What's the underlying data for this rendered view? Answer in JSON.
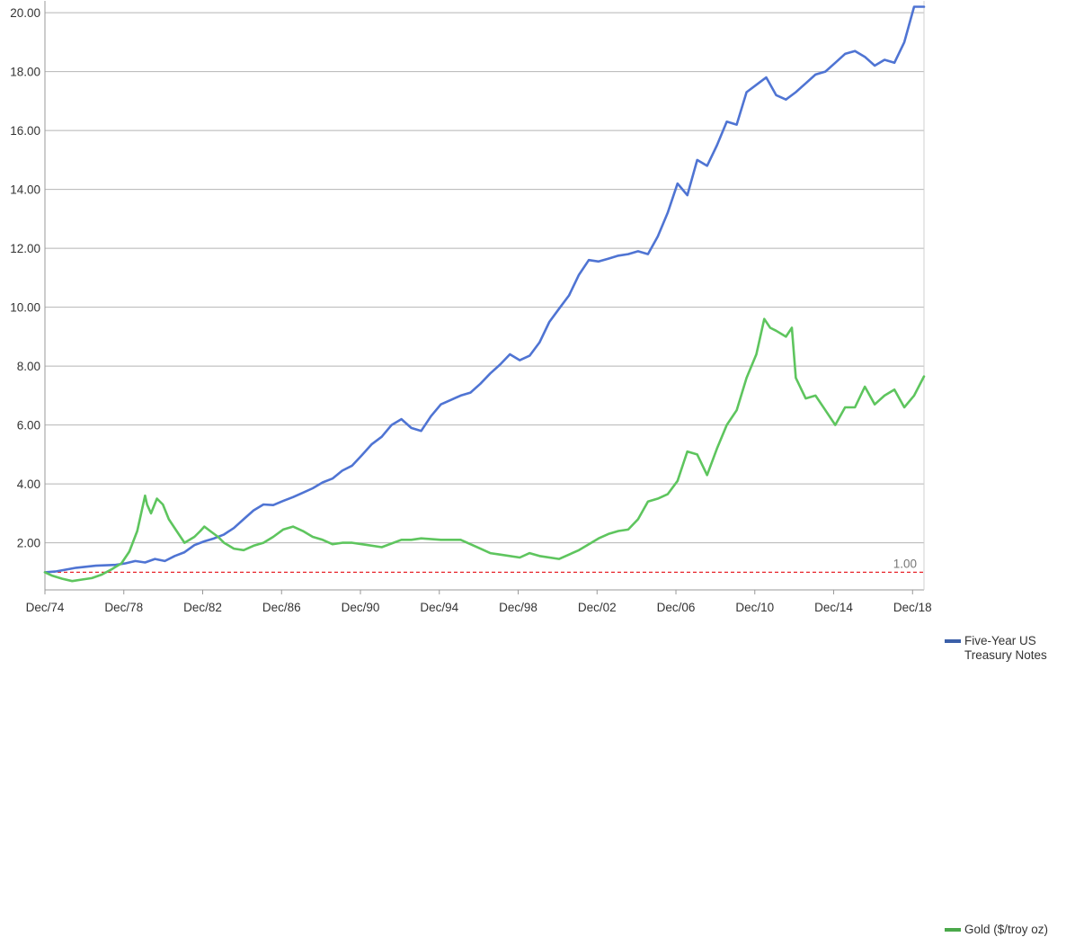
{
  "chart_data": {
    "type": "line",
    "title": "",
    "xlabel": "",
    "ylabel": "",
    "x_tick_labels": [
      "Dec/74",
      "Dec/78",
      "Dec/82",
      "Dec/86",
      "Dec/90",
      "Dec/94",
      "Dec/98",
      "Dec/02",
      "Dec/06",
      "Dec/10",
      "Dec/14",
      "Dec/18"
    ],
    "x_range_years": [
      1974.92,
      2019.5
    ],
    "y_ticks": [
      "2.00",
      "4.00",
      "6.00",
      "8.00",
      "10.00",
      "12.00",
      "14.00",
      "16.00",
      "18.00",
      "20.00"
    ],
    "ylim": [
      0.4,
      20.4
    ],
    "grid": "horizontal",
    "legend_position": "right",
    "reference_line": {
      "value": 1.0,
      "label": "1.00",
      "color": "#e8242b",
      "style": "dashed"
    },
    "series": [
      {
        "name": "Five-Year US Treasury Notes",
        "color": "#4f74d3",
        "legend_color": "#3b5fa8",
        "x": [
          1974.92,
          1975.5,
          1976.5,
          1977.5,
          1978.5,
          1979.0,
          1979.5,
          1980.0,
          1980.5,
          1981.0,
          1981.5,
          1982.0,
          1982.5,
          1983.0,
          1983.5,
          1984.0,
          1984.5,
          1985.0,
          1985.5,
          1986.0,
          1986.5,
          1987.0,
          1987.5,
          1988.0,
          1988.5,
          1989.0,
          1989.5,
          1990.0,
          1990.5,
          1991.0,
          1991.5,
          1992.0,
          1992.5,
          1993.0,
          1993.5,
          1994.0,
          1994.5,
          1995.0,
          1995.5,
          1996.0,
          1996.5,
          1997.0,
          1997.5,
          1998.0,
          1998.5,
          1999.0,
          1999.5,
          2000.0,
          2000.5,
          2001.0,
          2001.5,
          2002.0,
          2002.5,
          2003.0,
          2003.5,
          2004.0,
          2004.5,
          2005.0,
          2005.5,
          2006.0,
          2006.5,
          2007.0,
          2007.5,
          2008.0,
          2008.5,
          2009.0,
          2009.5,
          2010.0,
          2010.5,
          2011.0,
          2011.5,
          2012.0,
          2012.5,
          2013.0,
          2013.5,
          2014.0,
          2014.5,
          2015.0,
          2015.5,
          2016.0,
          2016.5,
          2017.0,
          2017.5,
          2018.0,
          2018.5,
          2019.0,
          2019.5
        ],
        "values": [
          1.0,
          1.03,
          1.15,
          1.22,
          1.25,
          1.3,
          1.38,
          1.33,
          1.45,
          1.38,
          1.55,
          1.68,
          1.92,
          2.05,
          2.15,
          2.28,
          2.5,
          2.8,
          3.1,
          3.3,
          3.28,
          3.42,
          3.55,
          3.7,
          3.85,
          4.05,
          4.18,
          4.45,
          4.62,
          4.98,
          5.35,
          5.6,
          6.0,
          6.2,
          5.9,
          5.8,
          6.3,
          6.7,
          6.85,
          7.0,
          7.1,
          7.4,
          7.75,
          8.05,
          8.4,
          8.2,
          8.35,
          8.8,
          9.5,
          9.95,
          10.4,
          11.1,
          11.6,
          11.55,
          11.65,
          11.75,
          11.8,
          11.9,
          11.8,
          12.4,
          13.2,
          14.2,
          13.8,
          15.0,
          14.8,
          15.5,
          16.3,
          16.2,
          17.3,
          17.55,
          17.8,
          17.2,
          17.05,
          17.3,
          17.6,
          17.9,
          18.0,
          18.3,
          18.6,
          18.7,
          18.5,
          18.2,
          18.4,
          18.3,
          19.0,
          20.2,
          20.2
        ]
      },
      {
        "name": "Gold ($/troy oz)",
        "color": "#5ec55e",
        "legend_color": "#4aa84a",
        "x": [
          1974.92,
          1975.3,
          1975.8,
          1976.3,
          1976.8,
          1977.3,
          1977.8,
          1978.3,
          1978.8,
          1979.2,
          1979.6,
          1980.0,
          1980.1,
          1980.3,
          1980.6,
          1980.9,
          1981.2,
          1981.6,
          1982.0,
          1982.5,
          1982.8,
          1983.0,
          1983.3,
          1983.7,
          1984.0,
          1984.5,
          1985.0,
          1985.5,
          1986.0,
          1986.5,
          1987.0,
          1987.5,
          1988.0,
          1988.5,
          1989.0,
          1989.5,
          1990.0,
          1990.5,
          1991.0,
          1992.0,
          1993.0,
          1993.5,
          1994.0,
          1995.0,
          1996.0,
          1997.0,
          1997.5,
          1998.0,
          1999.0,
          1999.5,
          2000.0,
          2001.0,
          2002.0,
          2002.5,
          2003.0,
          2003.5,
          2004.0,
          2004.5,
          2005.0,
          2005.5,
          2006.0,
          2006.5,
          2007.0,
          2007.5,
          2008.0,
          2008.5,
          2009.0,
          2009.5,
          2010.0,
          2010.5,
          2011.0,
          2011.4,
          2011.7,
          2012.0,
          2012.5,
          2012.8,
          2013.0,
          2013.5,
          2014.0,
          2014.5,
          2015.0,
          2015.5,
          2016.0,
          2016.5,
          2017.0,
          2017.5,
          2018.0,
          2018.5,
          2019.0,
          2019.5
        ],
        "values": [
          1.0,
          0.88,
          0.78,
          0.7,
          0.75,
          0.8,
          0.92,
          1.1,
          1.3,
          1.7,
          2.4,
          3.6,
          3.3,
          3.0,
          3.5,
          3.3,
          2.8,
          2.4,
          2.0,
          2.2,
          2.4,
          2.55,
          2.4,
          2.2,
          2.0,
          1.8,
          1.75,
          1.9,
          2.0,
          2.2,
          2.45,
          2.55,
          2.4,
          2.2,
          2.1,
          1.95,
          2.0,
          2.0,
          1.95,
          1.85,
          2.1,
          2.1,
          2.15,
          2.1,
          2.1,
          1.8,
          1.65,
          1.6,
          1.5,
          1.65,
          1.55,
          1.45,
          1.75,
          1.95,
          2.15,
          2.3,
          2.4,
          2.45,
          2.8,
          3.4,
          3.5,
          3.65,
          4.1,
          5.1,
          5.0,
          4.3,
          5.2,
          6.0,
          6.5,
          7.6,
          8.4,
          9.6,
          9.3,
          9.2,
          9.0,
          9.3,
          7.6,
          6.9,
          7.0,
          6.5,
          6.0,
          6.6,
          6.6,
          7.3,
          6.7,
          7.0,
          7.2,
          6.6,
          7.0,
          7.65
        ]
      }
    ]
  }
}
